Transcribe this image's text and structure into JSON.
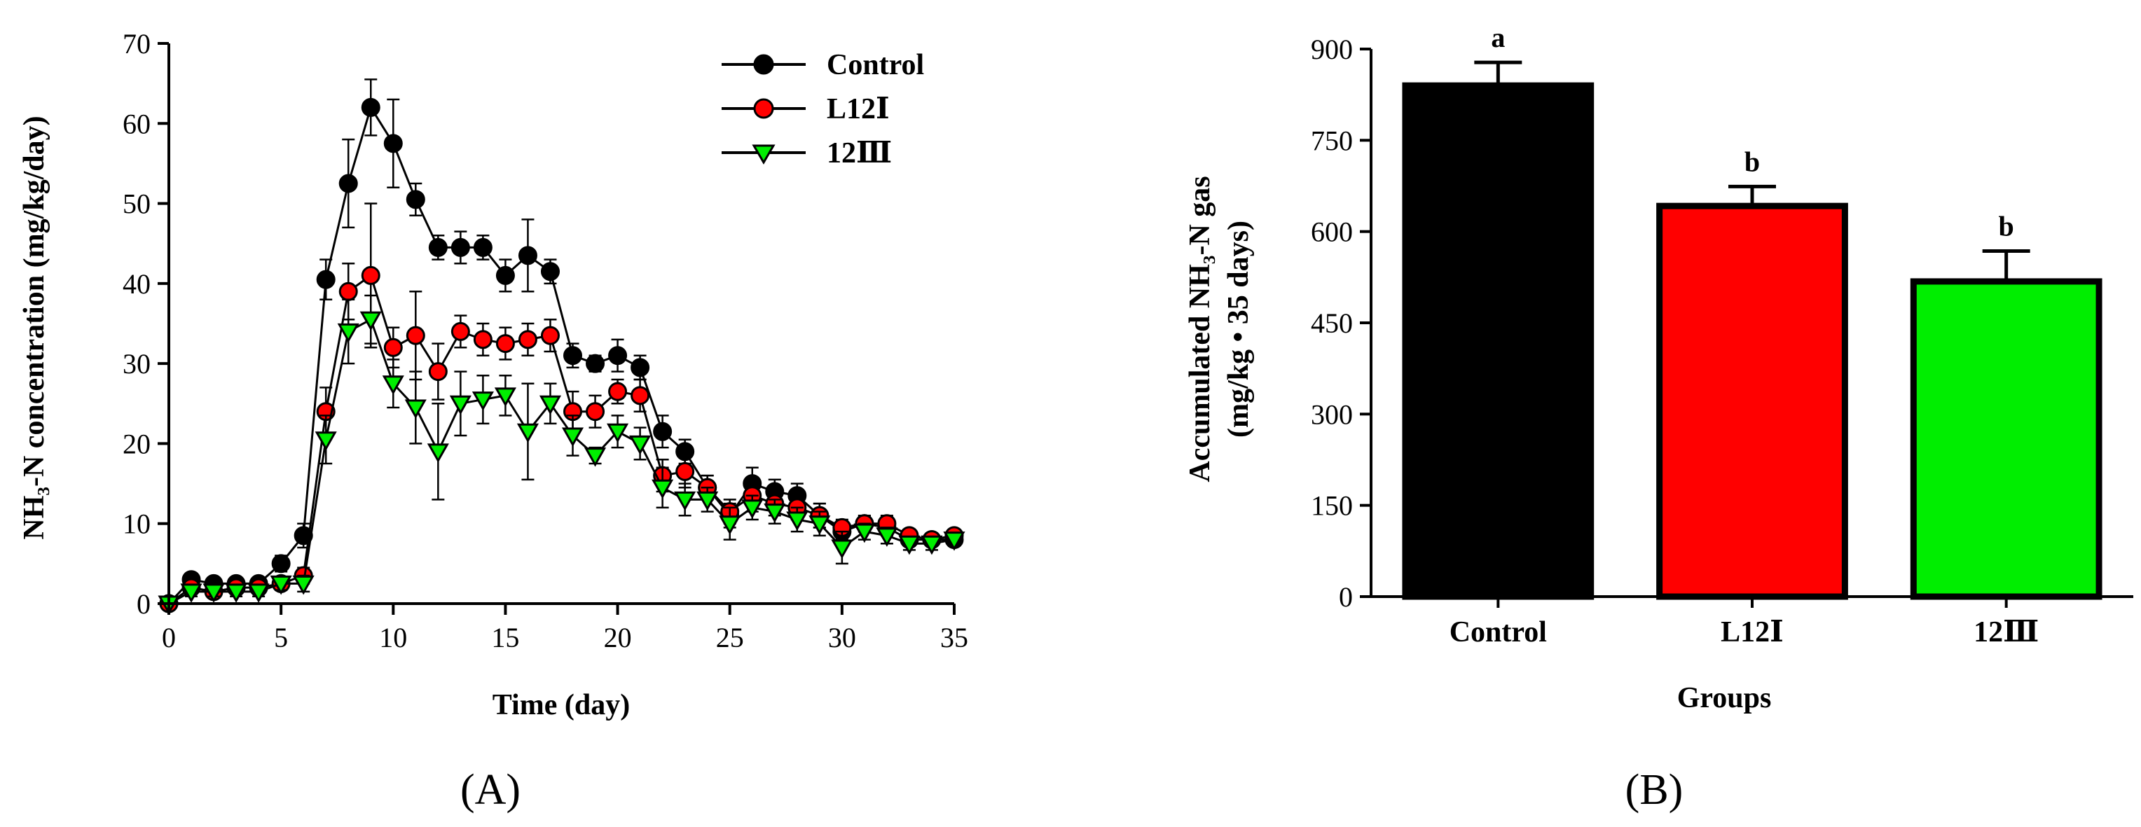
{
  "colors": {
    "control": "#000000",
    "l12": "#ff0000",
    "g12": "#00ee00",
    "axis": "#000000"
  },
  "chart_data": [
    {
      "type": "line",
      "panel_label": "(A)",
      "xlabel": "Time (day)",
      "ylabel": "NH₃-N concentration (mg/kg/day)",
      "xlim": [
        0,
        35
      ],
      "ylim": [
        0,
        70
      ],
      "x_ticks": [
        "0",
        "5",
        "10",
        "15",
        "20",
        "25",
        "30",
        "35"
      ],
      "y_ticks": [
        "0",
        "10",
        "20",
        "30",
        "40",
        "50",
        "60",
        "70"
      ],
      "legend_position": "top-right",
      "x": [
        0,
        1,
        2,
        3,
        4,
        5,
        6,
        7,
        8,
        9,
        10,
        11,
        12,
        13,
        14,
        15,
        16,
        17,
        18,
        19,
        20,
        21,
        22,
        23,
        24,
        25,
        26,
        27,
        28,
        29,
        30,
        31,
        32,
        33,
        34,
        35
      ],
      "series": [
        {
          "name": "Control",
          "marker": "circle",
          "color": "#000000",
          "values": [
            0,
            3,
            2.5,
            2.5,
            2.5,
            5,
            8.5,
            40.5,
            52.5,
            62,
            57.5,
            50.5,
            44.5,
            44.5,
            44.5,
            41,
            43.5,
            41.5,
            31,
            30,
            31,
            29.5,
            21.5,
            19,
            14.5,
            11,
            15,
            14,
            13.5,
            11,
            9,
            10,
            9.5,
            8,
            8,
            8
          ],
          "errors": [
            0,
            0.8,
            0.6,
            0.6,
            0.6,
            1,
            1.5,
            2.5,
            5.5,
            3.5,
            5.5,
            2,
            1.5,
            2,
            1.5,
            2,
            4.5,
            1.5,
            1.5,
            1,
            2,
            1.5,
            2,
            1.5,
            1.5,
            1.5,
            2,
            1.5,
            1.5,
            1.5,
            1,
            1,
            1,
            0.8,
            0.8,
            0.8
          ]
        },
        {
          "name": "L12Ⅰ",
          "marker": "circle",
          "color": "#ff0000",
          "values": [
            0,
            2,
            1.5,
            2,
            2,
            2.5,
            3.5,
            24,
            39,
            41,
            32,
            33.5,
            29,
            34,
            33,
            32.5,
            33,
            33.5,
            24,
            24,
            26.5,
            26,
            16,
            16.5,
            14.5,
            11.5,
            13.5,
            12.5,
            12,
            11,
            9.5,
            10,
            10,
            8.5,
            8,
            8.5
          ],
          "errors": [
            0,
            0.6,
            0.6,
            0.6,
            0.6,
            0.8,
            1,
            3,
            3.5,
            9,
            2.5,
            5.5,
            3.5,
            2,
            2,
            2,
            2,
            2,
            2.5,
            2,
            1.5,
            2,
            2,
            2,
            1.5,
            1.5,
            2,
            1.5,
            1.5,
            1.5,
            1,
            1,
            1,
            0.8,
            0.8,
            0.8
          ]
        },
        {
          "name": "12Ⅲ",
          "marker": "triangle-down",
          "color": "#00ee00",
          "values": [
            0,
            1.5,
            1.5,
            1.5,
            1.5,
            2.5,
            2.5,
            20.5,
            34,
            35.5,
            27.5,
            24.5,
            19,
            25,
            25.5,
            26,
            21.5,
            25,
            21,
            18.5,
            21.5,
            20,
            14.5,
            13,
            13,
            10,
            12,
            11.5,
            10.5,
            10,
            7,
            9,
            8.5,
            7.5,
            7.5,
            8
          ],
          "errors": [
            0,
            0.6,
            0.6,
            0.6,
            0.6,
            0.8,
            1,
            3,
            4,
            3,
            3,
            4.5,
            6,
            4,
            3,
            2.5,
            6,
            2.5,
            2.5,
            1,
            2,
            2,
            2.5,
            2,
            1.5,
            2,
            1.5,
            1.5,
            1.5,
            1.5,
            2,
            1,
            1,
            0.8,
            0.8,
            0.8
          ]
        }
      ]
    },
    {
      "type": "bar",
      "panel_label": "(B)",
      "xlabel": "Groups",
      "ylabel_line1": "Accumulated NH₃-N gas",
      "ylabel_line2": "(mg/kg • 35 days)",
      "ylim": [
        0,
        900
      ],
      "y_ticks": [
        "0",
        "150",
        "300",
        "450",
        "600",
        "750",
        "900"
      ],
      "categories": [
        "Control",
        "L12Ⅰ",
        "12Ⅲ"
      ],
      "values": [
        840,
        642,
        518
      ],
      "errors": [
        38,
        32,
        50
      ],
      "significance": [
        "a",
        "b",
        "b"
      ],
      "bar_colors": [
        "#000000",
        "#ff0000",
        "#00ee00"
      ]
    }
  ]
}
